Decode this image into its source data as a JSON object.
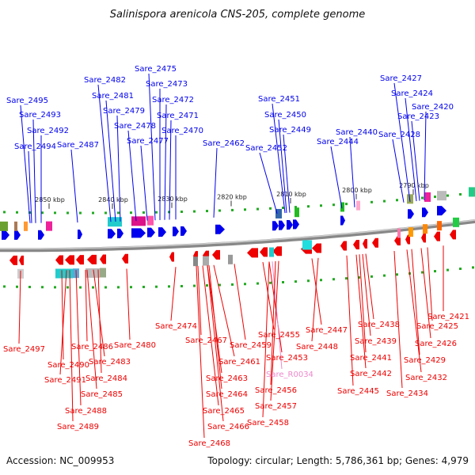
{
  "title": "Salinispora arenicola CNS-205, complete genome",
  "accession": "Accession: NC_009953",
  "topology": "Topology: circular; Length: 5,786,361 bp; Genes: 4,979",
  "colors": {
    "forward": "#0000ee",
    "reverse": "#ee0000",
    "rna": "#ee88cc",
    "backbone": "#888888",
    "tick": "#22aa22"
  },
  "scale_ticks": [
    "2850 kbp",
    "2840 kbp",
    "2830 kbp",
    "2820 kbp",
    "2810 kbp",
    "2800 kbp",
    "2790 kbp"
  ],
  "forward_labels": [
    "Sare_2495",
    "Sare_2493",
    "Sare_2492",
    "Sare_2494",
    "Sare_2487",
    "Sare_2482",
    "Sare_2481",
    "Sare_2479",
    "Sare_2478",
    "Sare_2477",
    "Sare_2475",
    "Sare_2473",
    "Sare_2472",
    "Sare_2471",
    "Sare_2470",
    "Sare_2462",
    "Sare_2451",
    "Sare_2450",
    "Sare_2449",
    "Sare_2452",
    "Sare_2444",
    "Sare_2440",
    "Sare_2427",
    "Sare_2424",
    "Sare_2420",
    "Sare_2423",
    "Sare_2428"
  ],
  "reverse_labels": [
    "Sare_2497",
    "Sare_2490",
    "Sare_2491",
    "Sare_2486",
    "Sare_2483",
    "Sare_2484",
    "Sare_2485",
    "Sare_2488",
    "Sare_2489",
    "Sare_2480",
    "Sare_2474",
    "Sare_2467",
    "Sare_2461",
    "Sare_2463",
    "Sare_2464",
    "Sare_2465",
    "Sare_2466",
    "Sare_2468",
    "Sare_2459",
    "Sare_2455",
    "Sare_2453",
    "Sare_R0034",
    "Sare_2456",
    "Sare_2457",
    "Sare_2458",
    "Sare_2447",
    "Sare_2448",
    "Sare_2438",
    "Sare_2439",
    "Sare_2441",
    "Sare_2442",
    "Sare_2445",
    "Sare_2421",
    "Sare_2425",
    "Sare_2426",
    "Sare_2429",
    "Sare_2432",
    "Sare_2434"
  ]
}
